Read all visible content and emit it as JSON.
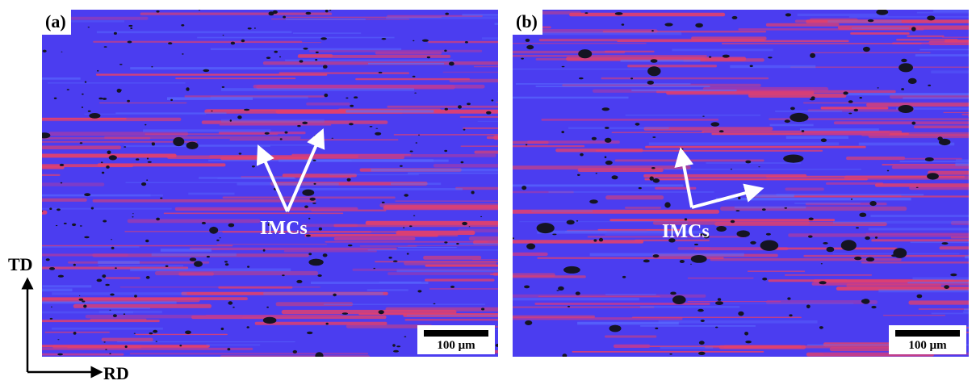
{
  "panels": [
    {
      "label": "(a)",
      "annotation": "IMCs",
      "scale_bar": "100 μm"
    },
    {
      "label": "(b)",
      "annotation": "IMCs",
      "scale_bar": "100 μm"
    }
  ],
  "axes": {
    "vertical": "TD",
    "horizontal": "RD"
  },
  "colors": {
    "matrix_blue": "#4b3df0",
    "band_red": "#e0406e",
    "particle": "#141422",
    "arrow": "#ffffff"
  }
}
